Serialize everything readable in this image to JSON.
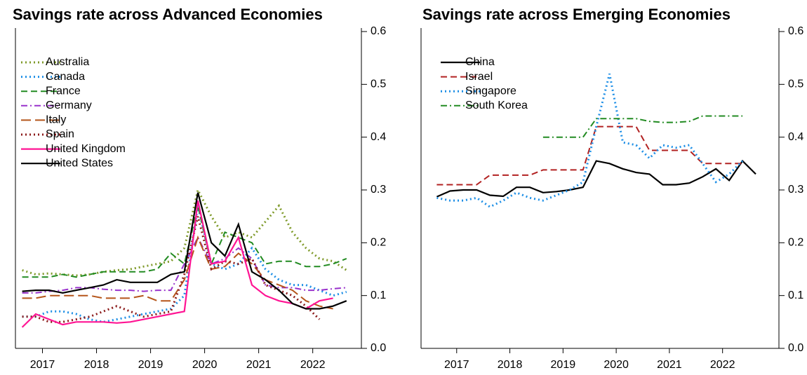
{
  "chart_data": [
    {
      "type": "line",
      "title": "Savings rate across Advanced Economies",
      "legend": "upper left",
      "xlim": [
        2017.0,
        2023.4
      ],
      "xticks": [
        {
          "value": 2017.5,
          "label": "2017"
        },
        {
          "value": 2018.5,
          "label": "2018"
        },
        {
          "value": 2019.5,
          "label": "2019"
        },
        {
          "value": 2020.5,
          "label": "2020"
        },
        {
          "value": 2021.5,
          "label": "2021"
        },
        {
          "value": 2022.5,
          "label": "2022"
        }
      ],
      "ylim": [
        0,
        0.6
      ],
      "yticks": [
        {
          "value": 0,
          "label": "0.0"
        },
        0.1,
        0.2,
        0.3,
        0.4,
        0.5,
        0.6
      ],
      "x": [
        2017.125,
        2017.375,
        2017.625,
        2017.875,
        2018.125,
        2018.375,
        2018.625,
        2018.875,
        2019.125,
        2019.375,
        2019.625,
        2019.875,
        2020.125,
        2020.375,
        2020.625,
        2020.875,
        2021.125,
        2021.375,
        2021.625,
        2021.875,
        2022.125,
        2022.375,
        2022.625,
        2022.875,
        2023.125
      ],
      "series": [
        {
          "name": "Australia",
          "color": "#7f9a2a",
          "style": "dotted",
          "values": [
            0.148,
            0.14,
            0.142,
            0.14,
            0.138,
            0.14,
            0.145,
            0.148,
            0.15,
            0.155,
            0.16,
            0.165,
            0.19,
            0.3,
            0.25,
            0.21,
            0.22,
            0.21,
            0.24,
            0.27,
            0.22,
            0.19,
            0.17,
            0.165,
            0.148
          ]
        },
        {
          "name": "Canada",
          "color": "#1e8fe6",
          "style": "dotted",
          "values": [
            0.06,
            0.06,
            0.07,
            0.07,
            0.065,
            0.055,
            0.05,
            0.055,
            0.06,
            0.065,
            0.07,
            0.075,
            0.1,
            0.27,
            0.16,
            0.15,
            0.16,
            0.19,
            0.15,
            0.13,
            0.12,
            0.12,
            0.11,
            0.1,
            0.107
          ]
        },
        {
          "name": "France",
          "color": "#228b22",
          "style": "dashed",
          "values": [
            0.135,
            0.135,
            0.135,
            0.14,
            0.135,
            0.14,
            0.145,
            0.145,
            0.145,
            0.145,
            0.15,
            0.18,
            0.16,
            0.27,
            0.16,
            0.22,
            0.21,
            0.2,
            0.16,
            0.165,
            0.165,
            0.155,
            0.155,
            0.16,
            0.17
          ]
        },
        {
          "name": "Germany",
          "color": "#9932cc",
          "style": "dashdot",
          "values": [
            0.105,
            0.105,
            0.108,
            0.11,
            0.115,
            0.115,
            0.112,
            0.11,
            0.11,
            0.108,
            0.11,
            0.11,
            0.16,
            0.21,
            0.16,
            0.17,
            0.19,
            0.17,
            0.12,
            0.115,
            0.115,
            0.11,
            0.11,
            0.113,
            0.115
          ]
        },
        {
          "name": "Italy",
          "color": "#b5551a",
          "style": "longdash",
          "values": [
            0.095,
            0.095,
            0.1,
            0.1,
            0.1,
            0.1,
            0.095,
            0.095,
            0.095,
            0.1,
            0.09,
            0.09,
            0.13,
            0.21,
            0.15,
            0.155,
            0.18,
            0.16,
            0.13,
            0.12,
            0.11,
            0.09,
            0.08,
            0.075,
            null
          ]
        },
        {
          "name": "Spain",
          "color": "#8b1a1a",
          "style": "dotted",
          "values": [
            0.06,
            0.06,
            0.05,
            0.05,
            0.055,
            0.06,
            0.07,
            0.08,
            0.07,
            0.06,
            0.065,
            0.07,
            0.14,
            0.25,
            0.15,
            0.165,
            0.16,
            0.17,
            0.12,
            0.11,
            0.1,
            0.08,
            0.055,
            null,
            null
          ]
        },
        {
          "name": "United Kingdom",
          "color": "#ff1493",
          "style": "solid",
          "values": [
            0.04,
            0.065,
            0.055,
            0.045,
            0.05,
            0.05,
            0.05,
            0.048,
            0.05,
            0.055,
            0.06,
            0.065,
            0.07,
            0.28,
            0.16,
            0.165,
            0.21,
            0.12,
            0.1,
            0.09,
            0.085,
            0.075,
            0.09,
            0.095,
            null
          ]
        },
        {
          "name": "United States",
          "color": "#000000",
          "style": "solid",
          "values": [
            0.108,
            0.11,
            0.11,
            0.105,
            0.11,
            0.115,
            0.12,
            0.13,
            0.125,
            0.125,
            0.125,
            0.14,
            0.145,
            0.295,
            0.2,
            0.175,
            0.235,
            0.145,
            0.13,
            0.11,
            0.085,
            0.075,
            0.075,
            0.08,
            0.09
          ]
        }
      ]
    },
    {
      "type": "line",
      "title": "Savings rate across Emerging Economies",
      "legend": "upper left",
      "xlim": [
        2016.83,
        2023.56
      ],
      "xticks": [
        {
          "value": 2017.5,
          "label": "2017"
        },
        {
          "value": 2018.5,
          "label": "2018"
        },
        {
          "value": 2019.5,
          "label": "2019"
        },
        {
          "value": 2020.5,
          "label": "2020"
        },
        {
          "value": 2021.5,
          "label": "2021"
        },
        {
          "value": 2022.5,
          "label": "2022"
        }
      ],
      "ylim": [
        0,
        0.6
      ],
      "yticks": [
        {
          "value": 0,
          "label": "0.0"
        },
        0.1,
        0.2,
        0.3,
        0.4,
        0.5,
        0.6
      ],
      "x": [
        2017.125,
        2017.375,
        2017.625,
        2017.875,
        2018.125,
        2018.375,
        2018.625,
        2018.875,
        2019.125,
        2019.375,
        2019.625,
        2019.875,
        2020.125,
        2020.375,
        2020.625,
        2020.875,
        2021.125,
        2021.375,
        2021.625,
        2021.875,
        2022.125,
        2022.375,
        2022.625,
        2022.875,
        2023.125
      ],
      "series": [
        {
          "name": "China",
          "color": "#000000",
          "style": "solid",
          "values": [
            0.287,
            0.298,
            0.3,
            0.3,
            0.29,
            0.288,
            0.305,
            0.305,
            0.295,
            0.297,
            0.3,
            0.305,
            0.355,
            0.35,
            0.34,
            0.333,
            0.33,
            0.31,
            0.31,
            0.313,
            0.325,
            0.34,
            0.318,
            0.355,
            0.33
          ]
        },
        {
          "name": "Israel",
          "color": "#b22222",
          "style": "dashed",
          "values": [
            0.31,
            0.31,
            0.31,
            0.31,
            0.328,
            0.328,
            0.328,
            0.328,
            0.338,
            0.338,
            0.338,
            0.338,
            0.42,
            0.42,
            0.42,
            0.42,
            0.375,
            0.375,
            0.375,
            0.375,
            0.35,
            0.35,
            0.35,
            0.35,
            null
          ]
        },
        {
          "name": "Singapore",
          "color": "#1e8fe6",
          "style": "dotted",
          "values": [
            0.285,
            0.28,
            0.28,
            0.285,
            0.268,
            0.28,
            0.295,
            0.285,
            0.28,
            0.29,
            0.3,
            0.315,
            0.42,
            0.52,
            0.39,
            0.385,
            0.36,
            0.385,
            0.38,
            0.385,
            0.35,
            0.315,
            0.33,
            0.355,
            null
          ]
        },
        {
          "name": "South Korea",
          "color": "#228b22",
          "style": "dashdot",
          "values": [
            null,
            null,
            null,
            null,
            null,
            null,
            null,
            null,
            0.4,
            0.4,
            0.4,
            0.4,
            0.435,
            0.435,
            0.435,
            0.435,
            0.43,
            0.428,
            0.428,
            0.43,
            0.44,
            0.44,
            0.44,
            0.44,
            null
          ]
        }
      ]
    }
  ]
}
